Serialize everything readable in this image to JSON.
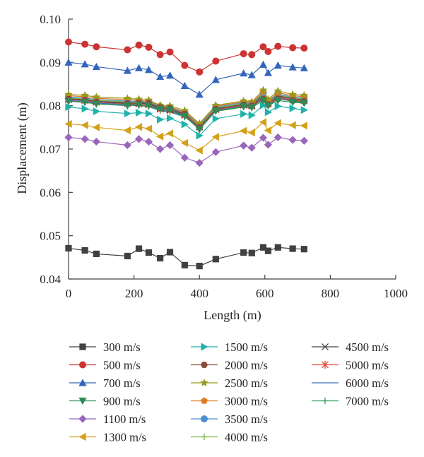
{
  "chart_data": {
    "type": "line",
    "xlabel": "Length (m)",
    "ylabel": "Displacement (m)",
    "xlim": [
      0,
      1000
    ],
    "ylim": [
      0.04,
      0.1
    ],
    "xticks": [
      "0",
      "200",
      "400",
      "600",
      "800",
      "1000"
    ],
    "yticks": [
      "0.04",
      "0.05",
      "0.06",
      "0.07",
      "0.08",
      "0.09",
      "0.10"
    ],
    "grid": false,
    "legend_position": "bottom",
    "x": [
      0,
      50,
      85,
      180,
      215,
      245,
      280,
      310,
      355,
      400,
      450,
      535,
      560,
      595,
      610,
      640,
      685,
      720
    ],
    "series": [
      {
        "name": "300 m/s",
        "color": "#404040",
        "marker": "square",
        "values": [
          0.0471,
          0.0466,
          0.0458,
          0.0453,
          0.047,
          0.0461,
          0.0448,
          0.0462,
          0.0432,
          0.043,
          0.0446,
          0.0461,
          0.046,
          0.0473,
          0.0465,
          0.0473,
          0.047,
          0.0469
        ]
      },
      {
        "name": "500 m/s",
        "color": "#cc3333",
        "marker": "circle",
        "values": [
          0.0947,
          0.0942,
          0.0936,
          0.0929,
          0.094,
          0.0935,
          0.0918,
          0.0924,
          0.0893,
          0.0878,
          0.0903,
          0.092,
          0.0918,
          0.0936,
          0.0925,
          0.0937,
          0.0934,
          0.0933
        ]
      },
      {
        "name": "700 m/s",
        "color": "#3366bb",
        "marker": "triangle-up",
        "values": [
          0.09,
          0.0896,
          0.089,
          0.0881,
          0.0887,
          0.0883,
          0.0867,
          0.087,
          0.0846,
          0.0826,
          0.086,
          0.0875,
          0.0871,
          0.0895,
          0.0876,
          0.0893,
          0.0889,
          0.0887
        ]
      },
      {
        "name": "900 m/s",
        "color": "#2e8b57",
        "marker": "triangle-down",
        "values": [
          0.081,
          0.0808,
          0.0804,
          0.08,
          0.0802,
          0.08,
          0.0792,
          0.0791,
          0.0776,
          0.0745,
          0.0788,
          0.0798,
          0.0796,
          0.0812,
          0.08,
          0.0812,
          0.0808,
          0.0806
        ]
      },
      {
        "name": "1100 m/s",
        "color": "#9966bb",
        "marker": "diamond",
        "values": [
          0.0727,
          0.0723,
          0.0717,
          0.0709,
          0.0723,
          0.0717,
          0.07,
          0.0709,
          0.068,
          0.0668,
          0.0693,
          0.0708,
          0.0703,
          0.0726,
          0.071,
          0.0727,
          0.0721,
          0.0719
        ]
      },
      {
        "name": "1300 m/s",
        "color": "#d4a017",
        "marker": "triangle-left",
        "values": [
          0.0758,
          0.0755,
          0.075,
          0.0743,
          0.0751,
          0.0747,
          0.0729,
          0.0736,
          0.0714,
          0.0697,
          0.0728,
          0.0742,
          0.0738,
          0.0762,
          0.0743,
          0.076,
          0.0755,
          0.0754
        ]
      },
      {
        "name": "1500 m/s",
        "color": "#20b2aa",
        "marker": "triangle-right",
        "values": [
          0.0797,
          0.0793,
          0.0787,
          0.0782,
          0.0784,
          0.0782,
          0.0768,
          0.0771,
          0.0757,
          0.0731,
          0.077,
          0.0781,
          0.0778,
          0.0801,
          0.0785,
          0.0799,
          0.0794,
          0.079
        ]
      },
      {
        "name": "2000 m/s",
        "color": "#8b4a3a",
        "marker": "hexagon",
        "values": [
          0.0815,
          0.0813,
          0.0809,
          0.0805,
          0.0807,
          0.0806,
          0.0796,
          0.0794,
          0.0781,
          0.075,
          0.0792,
          0.0802,
          0.08,
          0.0815,
          0.0803,
          0.0816,
          0.0812,
          0.081
        ]
      },
      {
        "name": "2500 m/s",
        "color": "#9a9a1e",
        "marker": "star",
        "values": [
          0.0826,
          0.0824,
          0.082,
          0.0817,
          0.0815,
          0.0813,
          0.0801,
          0.08,
          0.0789,
          0.0759,
          0.0801,
          0.0811,
          0.0809,
          0.0836,
          0.0815,
          0.0834,
          0.0826,
          0.0824
        ]
      },
      {
        "name": "3000 m/s",
        "color": "#e07b20",
        "marker": "pentagon",
        "values": [
          0.0823,
          0.0821,
          0.0817,
          0.0814,
          0.0812,
          0.081,
          0.08,
          0.0797,
          0.0786,
          0.0757,
          0.0799,
          0.0809,
          0.0807,
          0.0832,
          0.0812,
          0.083,
          0.0823,
          0.0821
        ]
      },
      {
        "name": "3500 m/s",
        "color": "#4f8fd0",
        "marker": "circle",
        "values": [
          0.082,
          0.0818,
          0.0814,
          0.0811,
          0.081,
          0.0808,
          0.0798,
          0.0795,
          0.0784,
          0.0755,
          0.0797,
          0.0807,
          0.0805,
          0.0829,
          0.081,
          0.0827,
          0.082,
          0.0818
        ]
      },
      {
        "name": "4000 m/s",
        "color": "#7cb342",
        "marker": "plus",
        "values": [
          0.0818,
          0.0816,
          0.0812,
          0.0809,
          0.0808,
          0.0806,
          0.0796,
          0.0793,
          0.0782,
          0.0753,
          0.0795,
          0.0805,
          0.0803,
          0.0827,
          0.0808,
          0.0825,
          0.0818,
          0.0816
        ]
      },
      {
        "name": "4500 m/s",
        "color": "#444444",
        "marker": "x",
        "values": [
          0.0816,
          0.0814,
          0.081,
          0.0807,
          0.0806,
          0.0804,
          0.0794,
          0.0791,
          0.078,
          0.0752,
          0.0793,
          0.0803,
          0.0801,
          0.0825,
          0.0806,
          0.0823,
          0.0816,
          0.0814
        ]
      },
      {
        "name": "5000 m/s",
        "color": "#e04a3a",
        "marker": "asterisk",
        "values": [
          0.0814,
          0.0812,
          0.0808,
          0.0805,
          0.0804,
          0.0802,
          0.0792,
          0.0789,
          0.0778,
          0.0751,
          0.0791,
          0.0801,
          0.0799,
          0.0823,
          0.0804,
          0.0821,
          0.0814,
          0.0812
        ]
      },
      {
        "name": "6000 m/s",
        "color": "#3a6fb5",
        "marker": "none",
        "values": [
          0.0812,
          0.081,
          0.0806,
          0.0803,
          0.0802,
          0.08,
          0.079,
          0.0787,
          0.0776,
          0.075,
          0.0789,
          0.0799,
          0.0797,
          0.0821,
          0.0802,
          0.0819,
          0.0812,
          0.081
        ]
      },
      {
        "name": "7000 m/s",
        "color": "#2e9e5b",
        "marker": "plus",
        "values": [
          0.081,
          0.0808,
          0.0804,
          0.0801,
          0.08,
          0.0798,
          0.0788,
          0.0785,
          0.0774,
          0.0749,
          0.0787,
          0.0797,
          0.0795,
          0.0819,
          0.08,
          0.0817,
          0.081,
          0.0808
        ]
      }
    ]
  }
}
